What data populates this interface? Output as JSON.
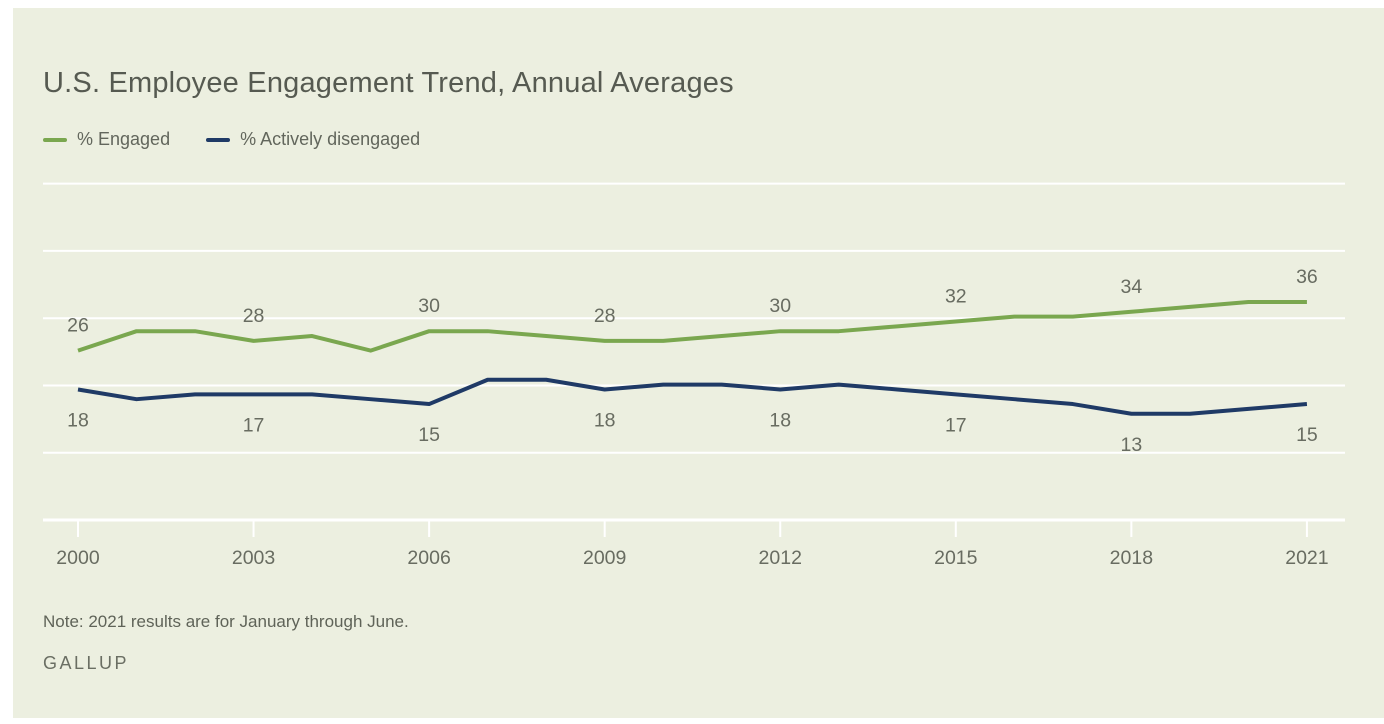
{
  "header": {
    "title": "U.S. Employee Engagement Trend, Annual Averages"
  },
  "legend": [
    {
      "label": "% Engaged",
      "color": "#7aa74f"
    },
    {
      "label": "% Actively disengaged",
      "color": "#1f3a66"
    }
  ],
  "chart_data": {
    "type": "line",
    "title": "U.S. Employee Engagement Trend, Annual Averages",
    "x": [
      2000,
      2001,
      2002,
      2003,
      2004,
      2005,
      2006,
      2007,
      2008,
      2009,
      2010,
      2011,
      2012,
      2013,
      2014,
      2015,
      2016,
      2017,
      2018,
      2019,
      2020,
      2021
    ],
    "series": [
      {
        "id": "engaged",
        "name": "% Engaged",
        "color": "#7aa74f",
        "values": [
          26,
          30,
          30,
          28,
          29,
          26,
          30,
          30,
          29,
          28,
          28,
          29,
          30,
          30,
          31,
          32,
          33,
          33,
          34,
          35,
          36,
          36
        ]
      },
      {
        "id": "actively-disengaged",
        "name": "% Actively disengaged",
        "color": "#1f3a66",
        "values": [
          18,
          16,
          17,
          17,
          17,
          16,
          15,
          20,
          20,
          18,
          19,
          19,
          18,
          19,
          18,
          17,
          16,
          15,
          13,
          13,
          14,
          15
        ]
      }
    ],
    "x_tick_years": [
      2000,
      2003,
      2006,
      2009,
      2012,
      2015,
      2018,
      2021
    ],
    "labeled_years": [
      2000,
      2003,
      2006,
      2009,
      2012,
      2015,
      2018,
      2021
    ],
    "labeled_values": {
      "engaged": [
        26,
        28,
        30,
        28,
        30,
        32,
        34,
        36
      ],
      "actively_disengaged": [
        18,
        17,
        15,
        18,
        18,
        17,
        13,
        15
      ]
    },
    "grid": "horizontal-white-lines",
    "y_axis_visible": false,
    "legend_position": "top-left",
    "background": "#ecefe0"
  },
  "footer": {
    "note": "Note: 2021 results are for January through June.",
    "source": "GALLUP"
  },
  "colors": {
    "card_background": "#ecefe0",
    "gridline": "#ffffff",
    "title_text": "#565a51",
    "label_text": "#686c61"
  }
}
